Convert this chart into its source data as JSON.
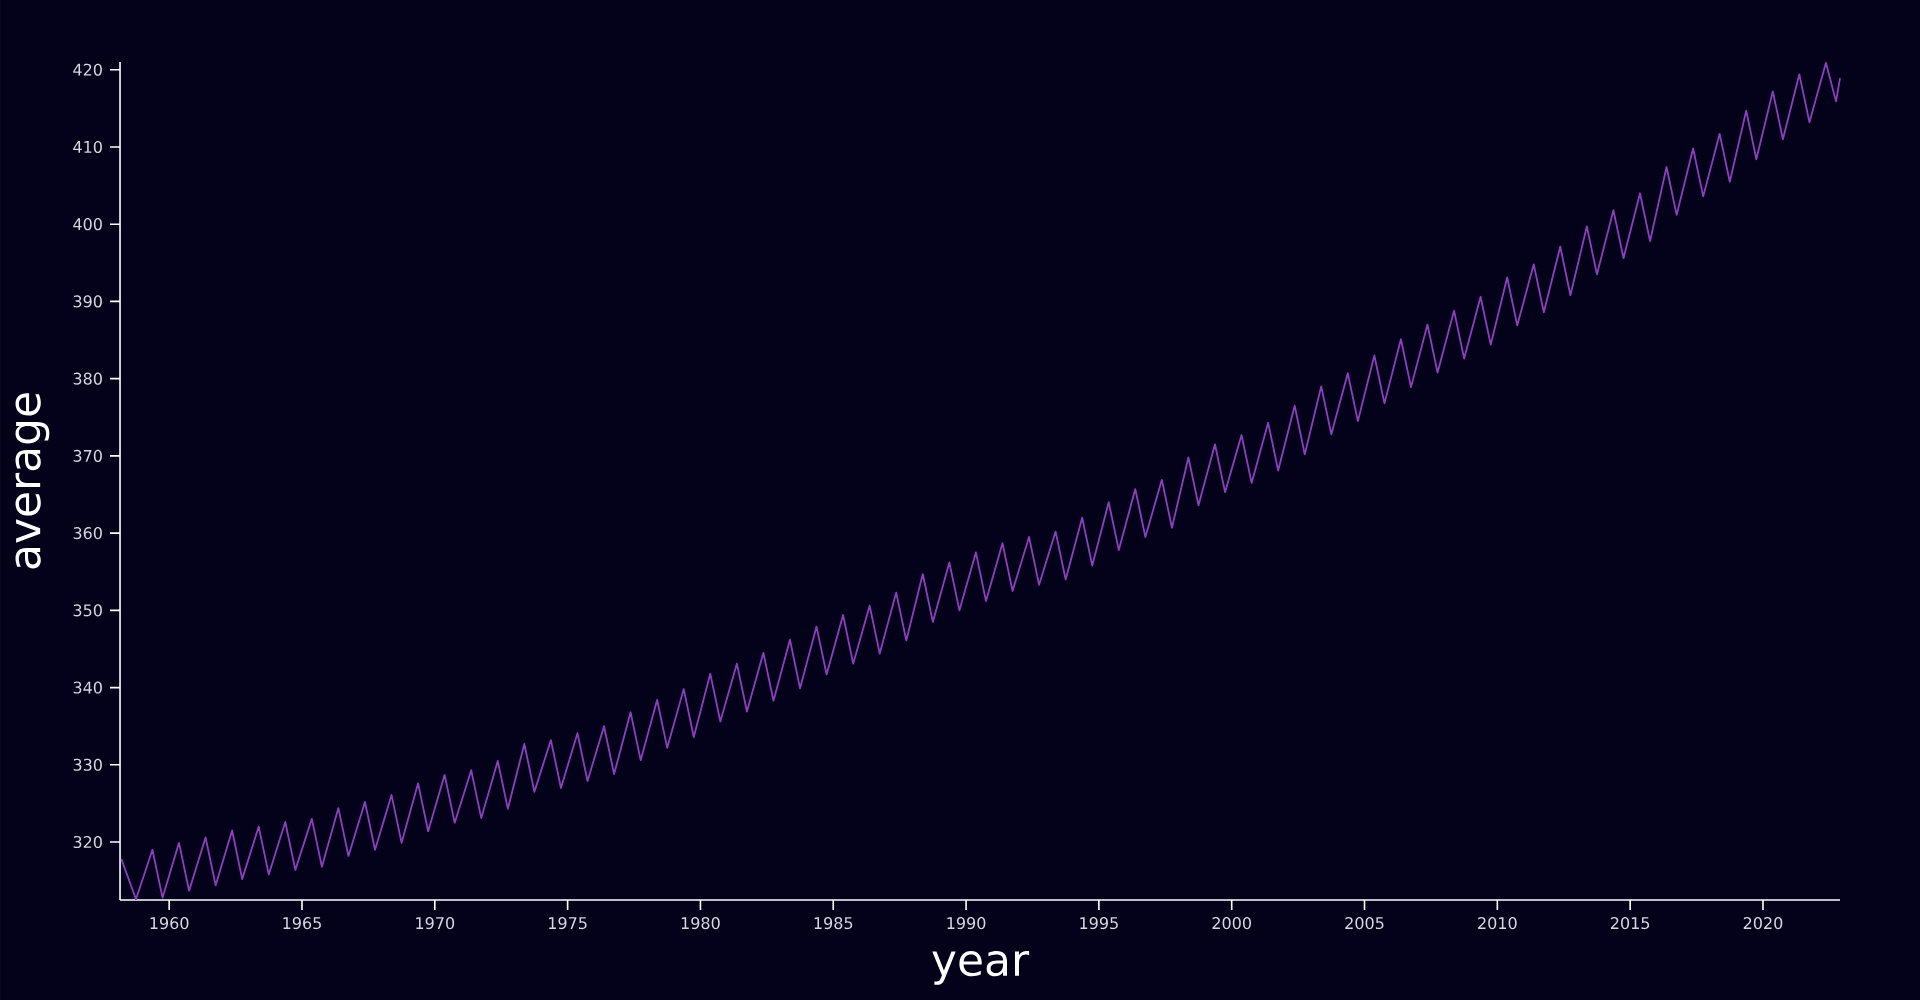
{
  "chart_data": {
    "type": "line",
    "xlabel": "year",
    "ylabel": "average",
    "xlim": [
      1958.15,
      2022.9
    ],
    "ylim": [
      312.5,
      421.0
    ],
    "xticks": [
      1960,
      1965,
      1970,
      1975,
      1980,
      1985,
      1990,
      1995,
      2000,
      2005,
      2010,
      2015,
      2020
    ],
    "yticks": [
      320,
      330,
      340,
      350,
      360,
      370,
      380,
      390,
      400,
      410,
      420
    ],
    "grid": false,
    "legend": false,
    "marker": "none",
    "line_style": "solid",
    "series": [
      {
        "color": "#8e3fbf",
        "x": [
          1958.2,
          1958.75,
          1959.37,
          1959.75,
          1960.37,
          1960.75,
          1961.37,
          1961.75,
          1962.37,
          1962.75,
          1963.37,
          1963.75,
          1964.37,
          1964.75,
          1965.37,
          1965.75,
          1966.37,
          1966.75,
          1967.37,
          1967.75,
          1968.37,
          1968.75,
          1969.37,
          1969.75,
          1970.37,
          1970.75,
          1971.37,
          1971.75,
          1972.37,
          1972.75,
          1973.37,
          1973.75,
          1974.37,
          1974.75,
          1975.37,
          1975.75,
          1976.37,
          1976.75,
          1977.37,
          1977.75,
          1978.37,
          1978.75,
          1979.37,
          1979.75,
          1980.37,
          1980.75,
          1981.37,
          1981.75,
          1982.37,
          1982.75,
          1983.37,
          1983.75,
          1984.37,
          1984.75,
          1985.37,
          1985.75,
          1986.37,
          1986.75,
          1987.37,
          1987.75,
          1988.37,
          1988.75,
          1989.37,
          1989.75,
          1990.37,
          1990.75,
          1991.37,
          1991.75,
          1992.37,
          1992.75,
          1993.37,
          1993.75,
          1994.37,
          1994.75,
          1995.37,
          1995.75,
          1996.37,
          1996.75,
          1997.37,
          1997.75,
          1998.37,
          1998.75,
          1999.37,
          1999.75,
          2000.37,
          2000.75,
          2001.37,
          2001.75,
          2002.37,
          2002.75,
          2003.37,
          2003.75,
          2004.37,
          2004.75,
          2005.37,
          2005.75,
          2006.37,
          2006.75,
          2007.37,
          2007.75,
          2008.37,
          2008.75,
          2009.37,
          2009.75,
          2010.37,
          2010.75,
          2011.37,
          2011.75,
          2012.37,
          2012.75,
          2013.37,
          2013.75,
          2014.37,
          2014.75,
          2015.37,
          2015.75,
          2016.37,
          2016.75,
          2017.37,
          2017.75,
          2018.37,
          2018.75,
          2019.37,
          2019.75,
          2020.37,
          2020.75,
          2021.37,
          2021.75,
          2022.37,
          2022.75,
          2022.9
        ],
        "values": [
          317.8,
          312.6,
          319.0,
          312.8,
          319.9,
          313.7,
          320.6,
          314.4,
          321.5,
          315.2,
          322.0,
          315.8,
          322.6,
          316.4,
          323.0,
          316.8,
          324.4,
          318.2,
          325.2,
          319.0,
          326.1,
          319.9,
          327.6,
          321.4,
          328.7,
          322.5,
          329.3,
          323.1,
          330.5,
          324.3,
          332.7,
          326.5,
          333.2,
          327.0,
          334.1,
          327.9,
          335.0,
          328.8,
          336.8,
          330.6,
          338.4,
          332.2,
          339.8,
          333.6,
          341.8,
          335.6,
          343.1,
          336.9,
          344.5,
          338.3,
          346.2,
          339.9,
          347.9,
          341.7,
          349.4,
          343.1,
          350.6,
          344.4,
          352.3,
          346.1,
          354.7,
          348.5,
          356.2,
          350.0,
          357.5,
          351.2,
          358.7,
          352.5,
          359.5,
          353.3,
          360.2,
          354.0,
          362.0,
          355.8,
          364.0,
          357.8,
          365.7,
          359.5,
          366.9,
          360.7,
          369.8,
          363.6,
          371.5,
          365.3,
          372.7,
          366.5,
          374.3,
          368.1,
          376.5,
          370.2,
          379.0,
          372.8,
          380.7,
          374.5,
          383.0,
          376.8,
          385.1,
          378.9,
          387.0,
          380.8,
          388.8,
          382.6,
          390.6,
          384.4,
          393.1,
          386.9,
          394.8,
          388.6,
          397.1,
          390.8,
          399.7,
          393.5,
          401.8,
          395.6,
          404.0,
          397.8,
          407.4,
          401.2,
          409.8,
          403.6,
          411.7,
          405.5,
          414.7,
          408.4,
          417.2,
          411.0,
          419.4,
          413.2,
          420.9,
          415.9,
          418.9
        ]
      }
    ]
  }
}
